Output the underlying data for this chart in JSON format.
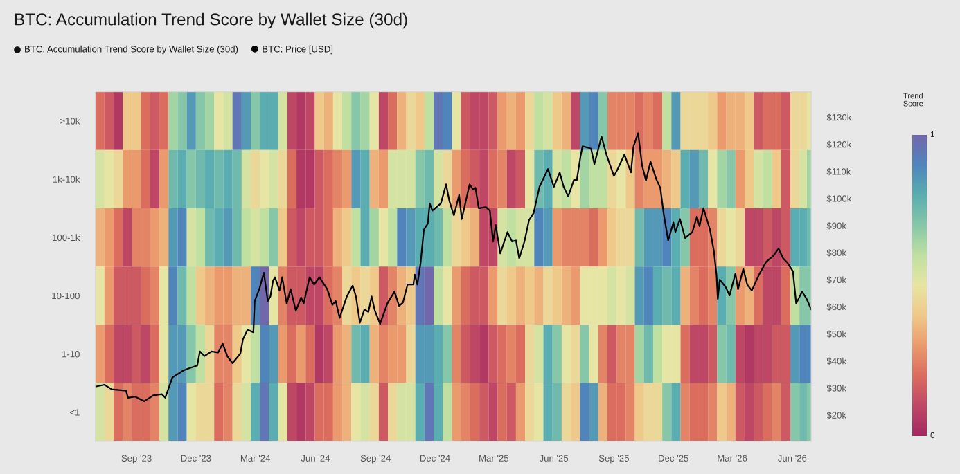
{
  "chart_data": {
    "type": "heatmap",
    "title": "BTC: Accumulation Trend Score by Wallet Size (30d)",
    "annotations": [
      "BTC: Accumulation Trend Score by Wallet Size (30d)"
    ],
    "legend": "top left",
    "clabel": "Trend\nScore",
    "clim": [
      0,
      1
    ],
    "cticks": [
      0,
      1
    ],
    "xlim": [
      "2023-06-30",
      "2026-06-30"
    ],
    "xticks": [
      {
        "value": "2023-09-01",
        "label": "Sep '23"
      },
      {
        "value": "2023-12-01",
        "label": "Dec '23"
      },
      {
        "value": "2024-03-01",
        "label": "Mar '24"
      },
      {
        "value": "2024-06-01",
        "label": "Jun '24"
      },
      {
        "value": "2024-09-01",
        "label": "Sep '24"
      },
      {
        "value": "2024-12-01",
        "label": "Dec '24"
      },
      {
        "value": "2025-03-01",
        "label": "Mar '25"
      },
      {
        "value": "2025-06-01",
        "label": "Jun '25"
      },
      {
        "value": "2025-09-01",
        "label": "Sep '25"
      },
      {
        "value": "2025-12-01",
        "label": "Dec '25"
      },
      {
        "value": "2026-03-01",
        "label": "Mar '26"
      },
      {
        "value": "2026-06-01",
        "label": "Jun '26"
      }
    ],
    "y2lim": [
      10300,
      139400
    ],
    "y2ticks": [
      {
        "value": 20000,
        "label": "$20k"
      },
      {
        "value": 30000,
        "label": "$30k"
      },
      {
        "value": 40000,
        "label": "$40k"
      },
      {
        "value": 50000,
        "label": "$50k"
      },
      {
        "value": 60000,
        "label": "$60k"
      },
      {
        "value": 70000,
        "label": "$70k"
      },
      {
        "value": 80000,
        "label": "$80k"
      },
      {
        "value": 90000,
        "label": "$90k"
      },
      {
        "value": 100000,
        "label": "$100k"
      },
      {
        "value": 110000,
        "label": "$110k"
      },
      {
        "value": 120000,
        "label": "$120k"
      },
      {
        "value": 130000,
        "label": "$130k"
      }
    ],
    "y_categories": [
      ">10k",
      "1k-10k",
      "100-1k",
      "10-100",
      "1-10",
      "<1"
    ],
    "x": [
      "2023-07-07",
      "2023-07-21",
      "2023-08-04",
      "2023-08-18",
      "2023-09-01",
      "2023-09-15",
      "2023-09-29",
      "2023-10-13",
      "2023-10-27",
      "2023-11-10",
      "2023-11-24",
      "2023-12-08",
      "2023-12-22",
      "2024-01-05",
      "2024-01-19",
      "2024-02-02",
      "2024-02-16",
      "2024-03-01",
      "2024-03-15",
      "2024-03-29",
      "2024-04-12",
      "2024-04-26",
      "2024-05-10",
      "2024-05-24",
      "2024-06-07",
      "2024-06-21",
      "2024-07-05",
      "2024-07-19",
      "2024-08-02",
      "2024-08-16",
      "2024-08-30",
      "2024-09-13",
      "2024-09-27",
      "2024-10-11",
      "2024-10-25",
      "2024-11-08",
      "2024-11-22",
      "2024-12-06",
      "2024-12-20",
      "2025-01-03",
      "2025-01-17",
      "2025-01-31",
      "2025-02-14",
      "2025-02-28",
      "2025-03-14",
      "2025-03-28",
      "2025-04-11",
      "2025-04-25",
      "2025-05-09",
      "2025-05-23",
      "2025-06-06",
      "2025-06-20",
      "2025-07-04",
      "2025-07-18",
      "2025-08-01",
      "2025-08-15",
      "2025-08-29",
      "2025-09-12",
      "2025-09-26",
      "2025-10-10",
      "2025-10-24",
      "2025-11-07",
      "2025-11-21",
      "2025-12-05",
      "2025-12-19",
      "2026-01-02",
      "2026-01-16",
      "2026-01-30",
      "2026-02-13",
      "2026-02-27",
      "2026-03-13",
      "2026-03-27",
      "2026-04-10",
      "2026-04-24",
      "2026-05-08",
      "2026-05-22",
      "2026-06-05",
      "2026-06-19",
      "2026-06-28"
    ],
    "cells": [
      [
        0.2,
        0.15,
        0.05,
        0.4,
        0.4,
        0.2,
        0.15,
        0.2,
        0.65,
        0.7,
        0.85,
        0.7,
        0.65,
        0.5,
        0.55,
        0.95,
        0.85,
        0.7,
        0.8,
        0.8,
        0.55,
        0.1,
        0.05,
        0.1,
        0.4,
        0.35,
        0.5,
        0.6,
        0.7,
        0.65,
        0.5,
        0.1,
        0.2,
        0.35,
        0.45,
        0.4,
        0.6,
        0.95,
        0.9,
        0.5,
        0.15,
        0.1,
        0.1,
        0.15,
        0.3,
        0.35,
        0.3,
        0.45,
        0.6,
        0.55,
        0.4,
        0.35,
        0.1,
        0.85,
        0.9,
        0.7,
        0.25,
        0.25,
        0.25,
        0.2,
        0.25,
        0.2,
        0.6,
        0.85,
        0.45,
        0.45,
        0.45,
        0.4,
        0.3,
        0.35,
        0.35,
        0.4,
        0.15,
        0.2,
        0.2,
        0.15,
        0.45,
        0.45,
        0.5
      ],
      [
        0.55,
        0.5,
        0.45,
        0.3,
        0.3,
        0.2,
        0.1,
        0.3,
        0.75,
        0.8,
        0.7,
        0.75,
        0.8,
        0.75,
        0.8,
        0.75,
        0.55,
        0.45,
        0.5,
        0.55,
        0.45,
        0.2,
        0.05,
        0.05,
        0.15,
        0.2,
        0.25,
        0.3,
        0.85,
        0.8,
        0.35,
        0.3,
        0.55,
        0.55,
        0.55,
        0.7,
        0.75,
        0.55,
        0.45,
        0.3,
        0.2,
        0.15,
        0.1,
        0.2,
        0.25,
        0.1,
        0.15,
        0.5,
        0.75,
        0.8,
        0.55,
        0.6,
        0.5,
        0.65,
        0.6,
        0.6,
        0.45,
        0.5,
        0.4,
        0.25,
        0.3,
        0.3,
        0.35,
        0.4,
        0.8,
        0.85,
        0.75,
        0.5,
        0.65,
        0.7,
        0.3,
        0.4,
        0.55,
        0.6,
        0.4,
        0.15,
        0.45,
        0.55,
        0.65
      ],
      [
        0.35,
        0.3,
        0.2,
        0.1,
        0.25,
        0.25,
        0.3,
        0.35,
        0.85,
        0.9,
        0.55,
        0.6,
        0.75,
        0.8,
        0.85,
        0.75,
        0.6,
        0.55,
        0.6,
        0.7,
        0.4,
        0.15,
        0.1,
        0.15,
        0.15,
        0.2,
        0.35,
        0.4,
        0.6,
        0.8,
        0.65,
        0.5,
        0.6,
        0.9,
        0.85,
        0.8,
        0.8,
        0.75,
        0.6,
        0.45,
        0.4,
        0.35,
        0.1,
        0.1,
        0.55,
        0.6,
        0.55,
        0.55,
        0.9,
        0.85,
        0.3,
        0.25,
        0.25,
        0.25,
        0.2,
        0.3,
        0.4,
        0.45,
        0.45,
        0.75,
        0.85,
        0.85,
        0.9,
        0.8,
        0.7,
        0.2,
        0.2,
        0.25,
        0.45,
        0.5,
        0.45,
        0.1,
        0.1,
        0.15,
        0.1,
        0.15,
        0.8,
        0.8,
        0.75
      ],
      [
        0.5,
        0.3,
        0.15,
        0.15,
        0.15,
        0.2,
        0.25,
        0.5,
        0.9,
        0.75,
        0.6,
        0.4,
        0.35,
        0.3,
        0.3,
        0.35,
        0.35,
        0.9,
        1.0,
        0.5,
        0.25,
        0.15,
        0.15,
        0.1,
        0.1,
        0.2,
        0.25,
        0.45,
        0.4,
        0.45,
        0.4,
        0.15,
        0.25,
        0.35,
        0.4,
        0.95,
        1.0,
        0.6,
        0.5,
        0.3,
        0.2,
        0.15,
        0.15,
        0.3,
        0.45,
        0.4,
        0.35,
        0.4,
        0.35,
        0.45,
        0.4,
        0.35,
        0.3,
        0.5,
        0.5,
        0.5,
        0.55,
        0.5,
        0.55,
        0.85,
        0.9,
        0.8,
        0.75,
        0.8,
        0.35,
        0.25,
        0.2,
        0.25,
        0.8,
        0.7,
        0.3,
        0.35,
        0.2,
        0.1,
        0.1,
        0.2,
        0.6,
        0.7,
        0.7
      ],
      [
        0.3,
        0.2,
        0.1,
        0.1,
        0.15,
        0.1,
        0.2,
        0.5,
        0.85,
        0.85,
        0.7,
        0.6,
        0.45,
        0.25,
        0.25,
        0.4,
        0.5,
        0.6,
        0.9,
        0.85,
        0.3,
        0.2,
        0.3,
        0.2,
        0.05,
        0.1,
        0.3,
        0.35,
        0.75,
        0.8,
        0.35,
        0.25,
        0.3,
        0.3,
        0.45,
        0.85,
        0.85,
        0.8,
        0.7,
        0.25,
        0.15,
        0.1,
        0.05,
        0.15,
        0.2,
        0.25,
        0.2,
        0.45,
        0.55,
        0.8,
        0.7,
        0.5,
        0.45,
        0.7,
        0.5,
        0.25,
        0.15,
        0.25,
        0.25,
        0.65,
        0.75,
        0.6,
        0.5,
        0.5,
        0.2,
        0.1,
        0.1,
        0.15,
        0.7,
        0.75,
        0.1,
        0.05,
        0.1,
        0.1,
        0.15,
        0.15,
        0.85,
        0.9,
        0.9
      ],
      [
        0.55,
        0.45,
        0.2,
        0.25,
        0.2,
        0.2,
        0.25,
        0.55,
        0.85,
        0.9,
        0.5,
        0.45,
        0.45,
        0.2,
        0.25,
        0.45,
        0.55,
        0.8,
        0.95,
        0.8,
        0.5,
        0.1,
        0.05,
        0.1,
        0.2,
        0.2,
        0.3,
        0.35,
        0.5,
        0.55,
        0.45,
        0.15,
        0.45,
        0.55,
        0.55,
        0.8,
        0.95,
        0.8,
        0.6,
        0.3,
        0.25,
        0.2,
        0.15,
        0.1,
        0.2,
        0.15,
        0.3,
        0.45,
        0.5,
        0.8,
        0.75,
        0.45,
        0.4,
        0.9,
        0.85,
        0.35,
        0.2,
        0.2,
        0.25,
        0.4,
        0.45,
        0.45,
        0.7,
        0.8,
        0.25,
        0.2,
        0.2,
        0.25,
        0.4,
        0.35,
        0.15,
        0.1,
        0.15,
        0.2,
        0.25,
        0.15,
        0.7,
        0.75,
        0.7
      ]
    ],
    "series": [
      {
        "name": "BTC: Price [USD]",
        "type": "line",
        "color": "#000000",
        "axis": "y2",
        "x": [
          "2023-06-30",
          "2023-07-14",
          "2023-07-25",
          "2023-08-16",
          "2023-08-19",
          "2023-08-30",
          "2023-09-13",
          "2023-09-27",
          "2023-10-10",
          "2023-10-15",
          "2023-10-26",
          "2023-11-12",
          "2023-11-22",
          "2023-12-03",
          "2023-12-07",
          "2023-12-14",
          "2023-12-25",
          "2024-01-04",
          "2024-01-11",
          "2024-01-18",
          "2024-01-26",
          "2024-02-07",
          "2024-02-11",
          "2024-02-18",
          "2024-02-27",
          "2024-02-29",
          "2024-03-07",
          "2024-03-14",
          "2024-03-20",
          "2024-03-24",
          "2024-03-28",
          "2024-03-31",
          "2024-04-07",
          "2024-04-11",
          "2024-04-18",
          "2024-04-24",
          "2024-05-02",
          "2024-05-10",
          "2024-05-14",
          "2024-05-23",
          "2024-05-30",
          "2024-06-07",
          "2024-06-19",
          "2024-06-27",
          "2024-07-02",
          "2024-07-08",
          "2024-07-19",
          "2024-07-28",
          "2024-08-02",
          "2024-08-08",
          "2024-08-15",
          "2024-08-21",
          "2024-08-26",
          "2024-08-31",
          "2024-09-08",
          "2024-09-19",
          "2024-09-30",
          "2024-10-07",
          "2024-10-13",
          "2024-10-20",
          "2024-10-29",
          "2024-10-31",
          "2024-11-04",
          "2024-11-09",
          "2024-11-14",
          "2024-11-20",
          "2024-11-23",
          "2024-11-27",
          "2024-12-10",
          "2024-12-18",
          "2024-12-23",
          "2024-12-30",
          "2025-01-07",
          "2025-01-11",
          "2025-01-23",
          "2025-01-28",
          "2025-02-01",
          "2025-02-06",
          "2025-02-17",
          "2025-02-23",
          "2025-02-28",
          "2025-03-04",
          "2025-03-11",
          "2025-03-22",
          "2025-03-29",
          "2025-04-04",
          "2025-04-09",
          "2025-04-17",
          "2025-04-24",
          "2025-05-01",
          "2025-05-10",
          "2025-05-23",
          "2025-06-01",
          "2025-06-10",
          "2025-06-16",
          "2025-06-23",
          "2025-07-02",
          "2025-07-06",
          "2025-07-12",
          "2025-07-15",
          "2025-07-28",
          "2025-08-02",
          "2025-08-13",
          "2025-08-21",
          "2025-09-01",
          "2025-09-06",
          "2025-09-17",
          "2025-09-27",
          "2025-10-01",
          "2025-10-08",
          "2025-10-14",
          "2025-10-20",
          "2025-10-27",
          "2025-11-05",
          "2025-11-11",
          "2025-11-16",
          "2025-11-23",
          "2025-12-01",
          "2025-12-04",
          "2025-12-11",
          "2025-12-19",
          "2025-12-30",
          "2026-01-06",
          "2026-01-10",
          "2026-01-16",
          "2026-01-26",
          "2026-02-01",
          "2026-02-05",
          "2026-02-07",
          "2026-02-10",
          "2026-02-19",
          "2026-02-25",
          "2026-03-06",
          "2026-03-10",
          "2026-03-18",
          "2026-03-24",
          "2026-03-31",
          "2026-04-11",
          "2026-04-22",
          "2026-05-03",
          "2026-05-11",
          "2026-05-18",
          "2026-05-25",
          "2026-06-02",
          "2026-06-07",
          "2026-06-16",
          "2026-06-23",
          "2026-06-30"
        ],
        "values": [
          30500,
          31200,
          29500,
          29000,
          26400,
          26800,
          25100,
          27300,
          27700,
          26400,
          33900,
          36500,
          37400,
          38300,
          43500,
          41800,
          43500,
          43100,
          46400,
          41800,
          39200,
          42700,
          48000,
          51500,
          50600,
          62100,
          66500,
          72600,
          62100,
          63800,
          69600,
          70900,
          66000,
          70900,
          61200,
          66500,
          58500,
          63400,
          61200,
          70900,
          68200,
          70900,
          66500,
          60700,
          62100,
          55900,
          63800,
          67800,
          63800,
          54100,
          59000,
          58100,
          63800,
          58500,
          53700,
          61200,
          65600,
          60300,
          61600,
          68200,
          68200,
          71900,
          68200,
          76200,
          88500,
          90700,
          98200,
          95500,
          98200,
          105200,
          99100,
          93800,
          101300,
          92400,
          105200,
          103400,
          103900,
          96400,
          96800,
          95500,
          84100,
          90200,
          79700,
          87600,
          84100,
          84500,
          77900,
          84100,
          92000,
          94600,
          104300,
          110900,
          104300,
          109600,
          104300,
          100800,
          107000,
          106600,
          115800,
          119300,
          118400,
          112700,
          122800,
          115800,
          108300,
          110500,
          116200,
          109600,
          119300,
          124100,
          112300,
          106600,
          113600,
          107000,
          103900,
          94600,
          84500,
          91100,
          87600,
          92400,
          85400,
          87600,
          93300,
          89800,
          96400,
          88500,
          80600,
          71900,
          62900,
          70000,
          67300,
          64200,
          72200,
          66500,
          74000,
          68200,
          66000,
          71800,
          76600,
          78800,
          81500,
          77900,
          76100,
          73100,
          61200,
          65600,
          62900,
          59000
        ]
      }
    ]
  }
}
